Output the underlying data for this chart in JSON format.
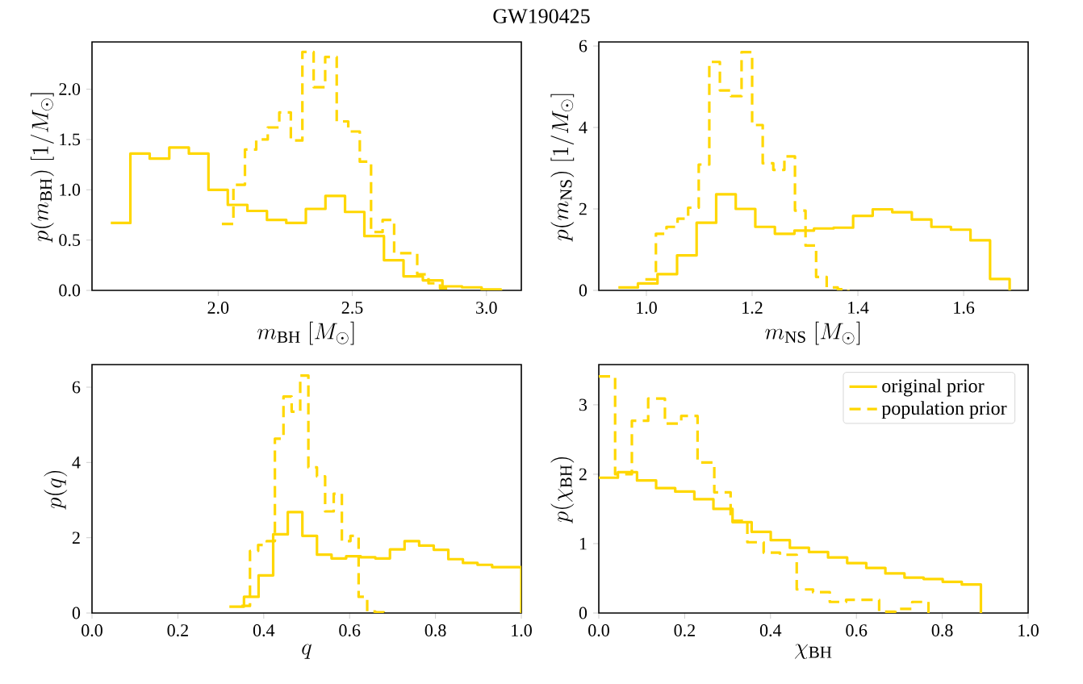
{
  "chart_data": [
    {
      "type": "step",
      "title": "GW190425",
      "xlabel": "m_{\\mathrm{BH}}\\ [M_\\odot]",
      "ylabel": "p(m_{\\mathrm{BH}})\\ [1/M_\\odot]",
      "xlim": [
        1.53,
        3.13
      ],
      "ylim": [
        0,
        2.47
      ],
      "xticks": [
        {
          "value": 2,
          "label": "2.0"
        },
        2.5,
        {
          "value": 3,
          "label": "3.0"
        }
      ],
      "yticks": [
        {
          "value": 0,
          "label": "0.0"
        },
        0.5,
        {
          "value": 1,
          "label": "1.0"
        },
        1.5,
        {
          "value": 2,
          "label": "2.0"
        }
      ],
      "series": [
        {
          "color": "#ffd700",
          "line_style": "solid",
          "x": [
            1.6,
            1.673,
            1.745,
            1.818,
            1.891,
            1.964,
            2.036,
            2.109,
            2.182,
            2.254,
            2.327,
            2.4,
            2.473,
            2.545,
            2.618,
            2.691,
            2.763,
            2.836,
            2.909,
            2.982,
            3.054
          ],
          "values": [
            0.67,
            1.36,
            1.31,
            1.42,
            1.36,
            1.0,
            0.85,
            0.79,
            0.7,
            0.67,
            0.81,
            0.94,
            0.78,
            0.54,
            0.3,
            0.14,
            0.1,
            0.04,
            0.03,
            0.01,
            0
          ]
        },
        {
          "color": "#ffd700",
          "line_style": "dashed",
          "x": [
            2.014,
            2.057,
            2.1,
            2.142,
            2.185,
            2.228,
            2.271,
            2.314,
            2.356,
            2.399,
            2.442,
            2.485,
            2.528,
            2.57,
            2.613,
            2.656,
            2.699,
            2.742,
            2.784,
            2.827,
            2.87
          ],
          "values": [
            0.66,
            1.05,
            1.4,
            1.5,
            1.62,
            1.77,
            1.49,
            2.37,
            2.02,
            2.32,
            1.68,
            1.58,
            1.28,
            0.58,
            0.7,
            0.37,
            0.37,
            0.16,
            0.07,
            0.02,
            0
          ]
        }
      ]
    },
    {
      "type": "step",
      "xlabel": "m_{\\mathrm{NS}}\\ [M_\\odot]",
      "ylabel": "p(m_{\\mathrm{NS}})\\ [1/M_\\odot]",
      "xlim": [
        0.91,
        1.722
      ],
      "ylim": [
        0,
        6.1
      ],
      "xticks": [
        {
          "value": 1,
          "label": "1.0"
        },
        1.2,
        1.4,
        1.6
      ],
      "yticks": [
        0,
        2,
        4,
        6
      ],
      "series": [
        {
          "color": "#ffd700",
          "line_style": "solid",
          "x": [
            0.947,
            0.984,
            1.021,
            1.058,
            1.095,
            1.132,
            1.169,
            1.206,
            1.243,
            1.28,
            1.317,
            1.354,
            1.391,
            1.428,
            1.465,
            1.502,
            1.539,
            1.576,
            1.613,
            1.65,
            1.687
          ],
          "values": [
            0.07,
            0.17,
            0.4,
            0.86,
            1.66,
            2.36,
            2.0,
            1.56,
            1.39,
            1.47,
            1.52,
            1.54,
            1.83,
            1.99,
            1.92,
            1.74,
            1.56,
            1.49,
            1.23,
            0.28,
            0
          ]
        },
        {
          "color": "#ffd700",
          "line_style": "dashed",
          "x": [
            0.998,
            1.018,
            1.038,
            1.059,
            1.079,
            1.099,
            1.119,
            1.139,
            1.16,
            1.18,
            1.2,
            1.22,
            1.24,
            1.261,
            1.281,
            1.301,
            1.321,
            1.341,
            1.362,
            1.382
          ],
          "values": [
            0.27,
            1.39,
            1.56,
            1.76,
            2.03,
            3.09,
            5.61,
            4.91,
            4.77,
            5.85,
            4.06,
            3.12,
            2.96,
            3.29,
            1.96,
            1.1,
            0.33,
            0.07,
            0.03,
            0
          ]
        }
      ]
    },
    {
      "type": "step",
      "xlabel": "q",
      "ylabel": "p(q)",
      "xlim": [
        0,
        1
      ],
      "ylim": [
        0,
        6.6
      ],
      "xticks": [
        {
          "value": 0,
          "label": "0.0"
        },
        0.2,
        0.4,
        0.6,
        0.8,
        {
          "value": 1,
          "label": "1.0"
        }
      ],
      "yticks": [
        0,
        2,
        4,
        6
      ],
      "series": [
        {
          "color": "#ffd700",
          "line_style": "solid",
          "x": [
            0.32,
            0.354,
            0.388,
            0.422,
            0.456,
            0.49,
            0.524,
            0.558,
            0.592,
            0.626,
            0.66,
            0.694,
            0.728,
            0.762,
            0.796,
            0.83,
            0.864,
            0.898,
            0.932,
            0.966,
            1.0
          ],
          "values": [
            0.17,
            0.43,
            1.0,
            2.09,
            2.68,
            2.05,
            1.55,
            1.45,
            1.51,
            1.48,
            1.45,
            1.69,
            1.91,
            1.79,
            1.68,
            1.43,
            1.33,
            1.28,
            1.22,
            1.22,
            0
          ]
        },
        {
          "color": "#ffd700",
          "line_style": "dashed",
          "x": [
            0.348,
            0.368,
            0.387,
            0.407,
            0.426,
            0.446,
            0.465,
            0.485,
            0.504,
            0.524,
            0.543,
            0.563,
            0.582,
            0.602,
            0.621,
            0.641,
            0.66,
            0.68
          ],
          "values": [
            0.19,
            1.65,
            1.81,
            1.91,
            4.63,
            5.75,
            5.35,
            6.31,
            3.87,
            3.63,
            2.7,
            3.17,
            1.91,
            2.05,
            0.43,
            0.04,
            0.02,
            0
          ]
        }
      ]
    },
    {
      "type": "step",
      "xlabel": "\\chi_{\\mathrm{BH}}",
      "ylabel": "p(\\chi_{\\mathrm{BH}})",
      "xlim": [
        0,
        1
      ],
      "ylim": [
        0,
        3.58
      ],
      "legend": "top right",
      "xticks": [
        {
          "value": 0,
          "label": "0.0"
        },
        0.2,
        0.4,
        0.6,
        0.8,
        {
          "value": 1,
          "label": "1.0"
        }
      ],
      "yticks": [
        0,
        1,
        2,
        3
      ],
      "series": [
        {
          "name": "original prior",
          "color": "#ffd700",
          "line_style": "solid",
          "x": [
            0,
            0.0445,
            0.089,
            0.1335,
            0.178,
            0.2225,
            0.267,
            0.3115,
            0.356,
            0.4005,
            0.445,
            0.4895,
            0.534,
            0.5785,
            0.623,
            0.6675,
            0.712,
            0.7565,
            0.801,
            0.8455,
            0.89
          ],
          "values": [
            1.95,
            2.03,
            1.91,
            1.8,
            1.75,
            1.64,
            1.5,
            1.31,
            1.17,
            1.05,
            0.94,
            0.88,
            0.8,
            0.72,
            0.65,
            0.57,
            0.51,
            0.49,
            0.45,
            0.41,
            0
          ]
        },
        {
          "name": "population prior",
          "color": "#ffd700",
          "line_style": "dashed",
          "x": [
            0,
            0.038,
            0.077,
            0.115,
            0.154,
            0.192,
            0.23,
            0.269,
            0.307,
            0.346,
            0.384,
            0.422,
            0.461,
            0.499,
            0.538,
            0.576,
            0.614,
            0.653,
            0.691,
            0.73,
            0.768
          ],
          "values": [
            3.41,
            2.0,
            2.77,
            3.09,
            2.73,
            2.84,
            2.17,
            1.74,
            1.33,
            1.02,
            0.87,
            0.84,
            0.34,
            0.3,
            0.16,
            0.19,
            0.19,
            0.02,
            0.06,
            0.16,
            0
          ]
        }
      ]
    }
  ]
}
